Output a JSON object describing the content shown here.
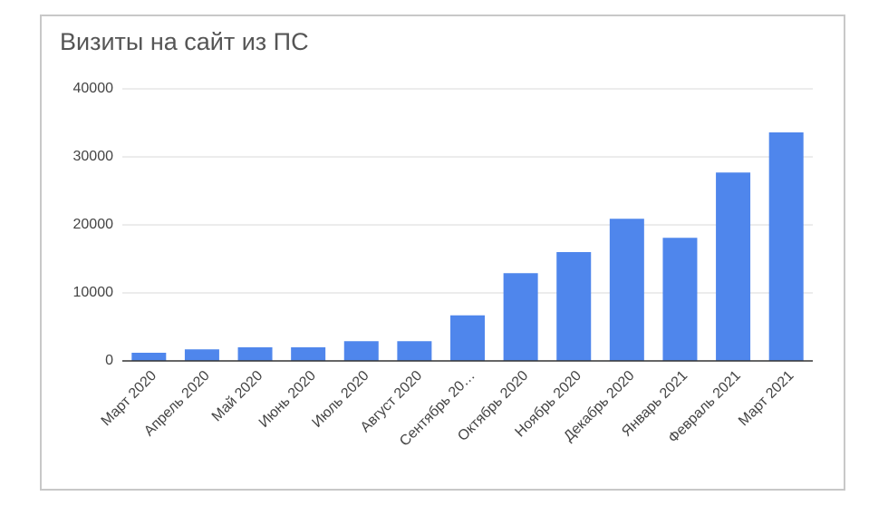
{
  "chart_data": {
    "type": "bar",
    "title": "Визиты на сайт из ПС",
    "categories": [
      "Март 2020",
      "Апрель 2020",
      "Май 2020",
      "Июнь 2020",
      "Июль 2020",
      "Август 2020",
      "Сентябрь 20…",
      "Октябрь 2020",
      "Ноябрь 2020",
      "Декабрь 2020",
      "Январь 2021",
      "Февраль 2021",
      "Март 2021"
    ],
    "values": [
      1200,
      1700,
      2000,
      2000,
      2900,
      2900,
      6700,
      12900,
      16000,
      20900,
      18100,
      27700,
      33600
    ],
    "color": "#4f86ec",
    "ylim": [
      0,
      40000
    ],
    "yticks": [
      0,
      10000,
      20000,
      30000,
      40000
    ],
    "grid": true
  }
}
